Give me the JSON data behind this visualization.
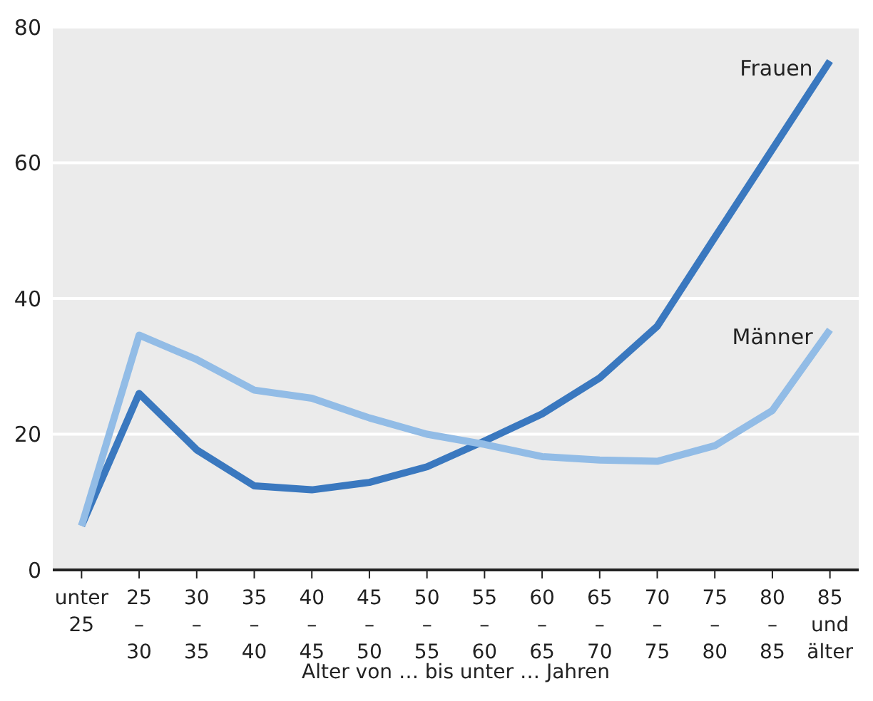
{
  "chart_data": {
    "type": "line",
    "xlabel": "Alter von … bis unter … Jahren",
    "categories": [
      "unter\n25",
      "25\n–\n30",
      "30\n–\n35",
      "35\n–\n40",
      "40\n–\n45",
      "45\n–\n50",
      "50\n–\n55",
      "55\n–\n60",
      "60\n–\n65",
      "65\n–\n70",
      "70\n–\n75",
      "75\n–\n80",
      "80\n–\n85",
      "85\nund\nälter"
    ],
    "series": [
      {
        "name": "Frauen",
        "color": "#3a78bf",
        "values": [
          6.5,
          26,
          17.7,
          12.4,
          11.8,
          12.9,
          15.2,
          19,
          23,
          28.3,
          35.9,
          49,
          62,
          75
        ]
      },
      {
        "name": "Männer",
        "color": "#92bce6",
        "values": [
          6.5,
          34.6,
          31,
          26.5,
          25.3,
          22.4,
          20,
          18.5,
          16.7,
          16.2,
          16,
          18.3,
          23.5,
          35.4
        ]
      }
    ],
    "ylim": [
      0,
      80
    ],
    "yticks": [
      0,
      20,
      40,
      60,
      80
    ],
    "grid": "y",
    "legend": false,
    "marker": "none",
    "line_style": "solid"
  }
}
